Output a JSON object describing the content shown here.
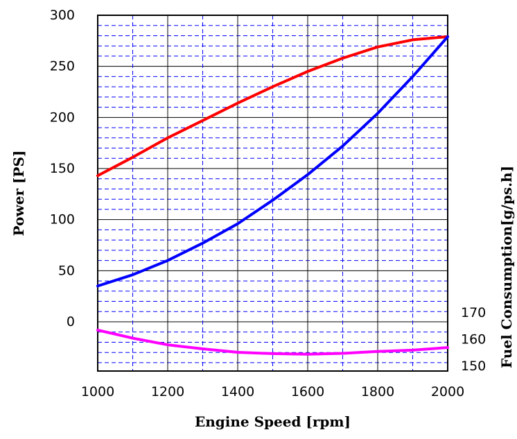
{
  "chart_data": {
    "type": "line",
    "xlabel": "Engine Speed [rpm]",
    "ylabel_left": "Power [PS]",
    "ylabel_right": "Fuel Consumption[g/ps.h]",
    "x_ticks": [
      "1000",
      "1200",
      "1400",
      "1600",
      "1800",
      "2000"
    ],
    "y_left_ticks": [
      "0",
      "50",
      "100",
      "150",
      "200",
      "250",
      "300"
    ],
    "y_right_ticks": [
      "150",
      "160",
      "170"
    ],
    "xlim": [
      1000,
      2000
    ],
    "ylim_left": [
      0,
      300
    ],
    "ylim_right": [
      150,
      170
    ],
    "grid": true,
    "series": [
      {
        "axis": "left",
        "color": "#ff0000",
        "x": [
          1000,
          1100,
          1200,
          1300,
          1400,
          1500,
          1600,
          1700,
          1800,
          1900,
          2000
        ],
        "y": [
          143,
          161,
          180,
          197,
          214,
          230,
          245,
          258,
          269,
          276,
          279
        ]
      },
      {
        "axis": "left",
        "color": "#0000ff",
        "x": [
          1000,
          1100,
          1200,
          1300,
          1400,
          1500,
          1600,
          1700,
          1800,
          1900,
          2000
        ],
        "y": [
          35,
          46,
          60,
          77,
          96,
          119,
          144,
          172,
          204,
          240,
          279
        ]
      },
      {
        "axis": "right",
        "color": "#ff00ff",
        "x": [
          1000,
          1100,
          1200,
          1300,
          1400,
          1500,
          1600,
          1700,
          1800,
          1900,
          2000
        ],
        "y": [
          163.5,
          160.5,
          158,
          156.5,
          155.2,
          154.7,
          154.5,
          154.8,
          155.5,
          156,
          157
        ]
      }
    ]
  }
}
